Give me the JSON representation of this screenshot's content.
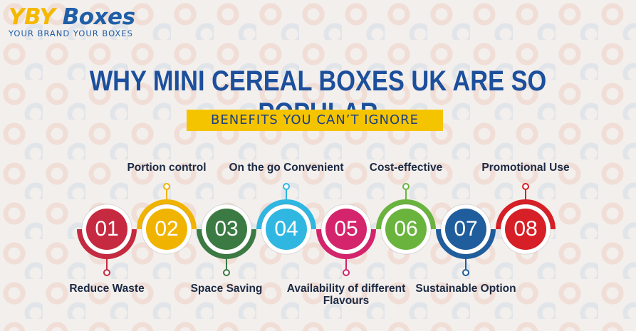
{
  "logo": {
    "brand_a": "YBY",
    "brand_b": "Boxes",
    "tagline": "YOUR BRAND YOUR BOXES"
  },
  "title": "WHY MINI CEREAL BOXES UK ARE SO POPULAR",
  "subtitle": "BENEFITS YOU CAN’T IGNORE",
  "items": [
    {
      "number": "01",
      "label": "Reduce Waste",
      "color": "#c62a40"
    },
    {
      "number": "02",
      "label": "Portion control",
      "color": "#f0b400"
    },
    {
      "number": "03",
      "label": "Space Saving",
      "color": "#3b7a42"
    },
    {
      "number": "04",
      "label": "On the go Convenient",
      "color": "#2fb7e2"
    },
    {
      "number": "05",
      "label": "Availability of different Flavours",
      "color": "#d4246c"
    },
    {
      "number": "06",
      "label": "Cost-effective",
      "color": "#6ab43e"
    },
    {
      "number": "07",
      "label": "Sustainable Option",
      "color": "#1f5d9c"
    },
    {
      "number": "08",
      "label": "Promotional Use",
      "color": "#d61f26"
    }
  ]
}
